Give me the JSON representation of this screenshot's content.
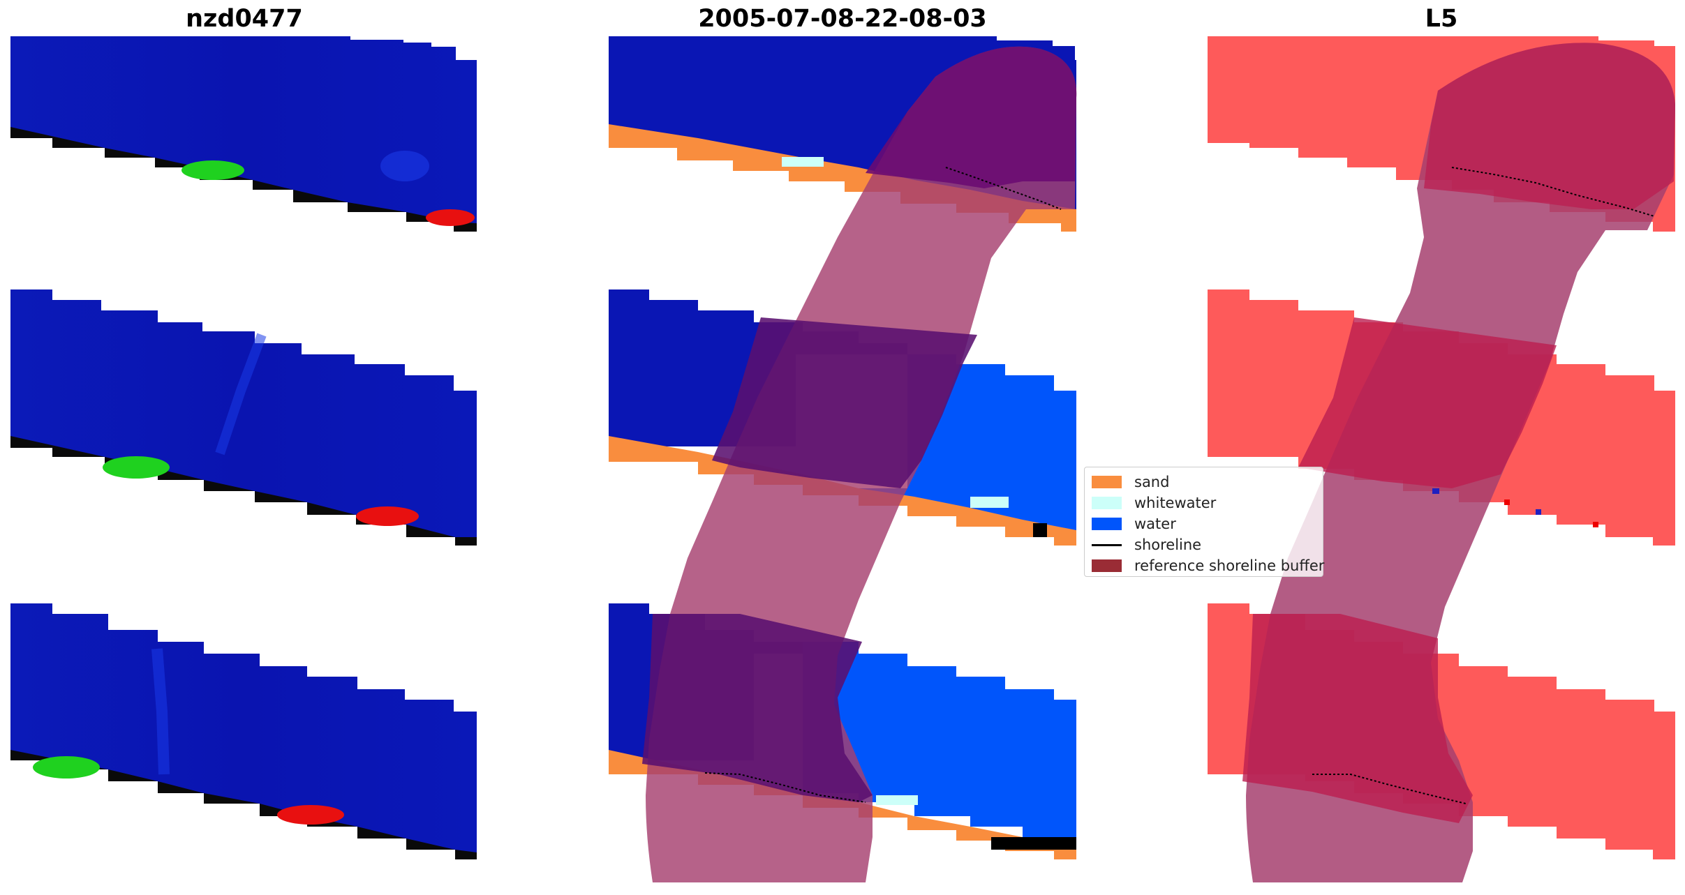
{
  "panels": [
    {
      "title": "nzd0477"
    },
    {
      "title": "2005-07-08-22-08-03"
    },
    {
      "title": "L5"
    }
  ],
  "legend": {
    "items": [
      {
        "label": "sand",
        "kind": "patch",
        "color": "#f98d3e"
      },
      {
        "label": "whitewater",
        "kind": "patch",
        "color": "#ccfff9"
      },
      {
        "label": "water",
        "kind": "patch",
        "color": "#0055fb"
      },
      {
        "label": "shoreline",
        "kind": "line",
        "color": "#000000"
      },
      {
        "label": "reference shoreline buffer",
        "kind": "patch",
        "color": "#9a2c35"
      }
    ]
  },
  "colors": {
    "rgb_water": "#0a16b4",
    "classified_water": "#0055fb",
    "sand": "#f98d3e",
    "whitewater": "#ccfff9",
    "mask_red": "#fe5a5a",
    "buffer_overlay": "#a6406f",
    "buffer_dark": "#6a0a72"
  }
}
